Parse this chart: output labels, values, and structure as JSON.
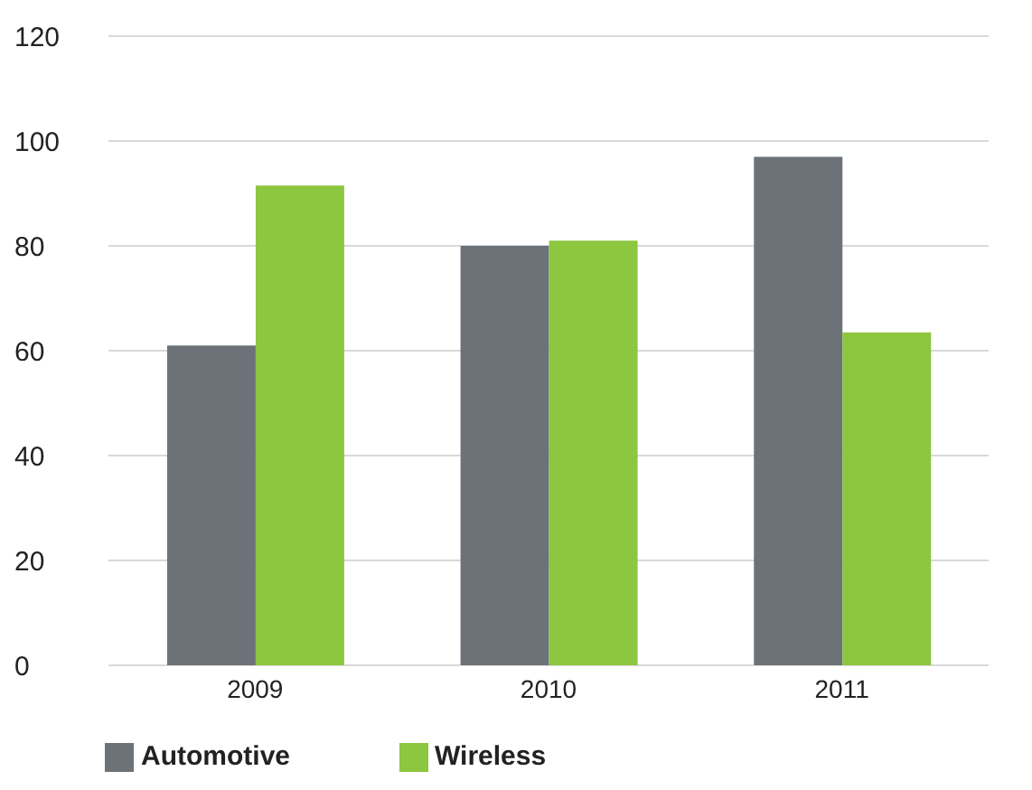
{
  "chart_data": {
    "type": "bar",
    "categories": [
      "2009",
      "2010",
      "2011"
    ],
    "series": [
      {
        "name": "Automotive",
        "color": "#6d7278",
        "values": [
          61,
          80,
          97
        ]
      },
      {
        "name": "Wireless",
        "color": "#8dc63f",
        "values": [
          91.5,
          81,
          63.5
        ]
      }
    ],
    "ylim": [
      0,
      120
    ],
    "yticks": [
      0,
      20,
      40,
      60,
      80,
      100,
      120
    ],
    "grid": "y",
    "legend": "bottom left"
  }
}
